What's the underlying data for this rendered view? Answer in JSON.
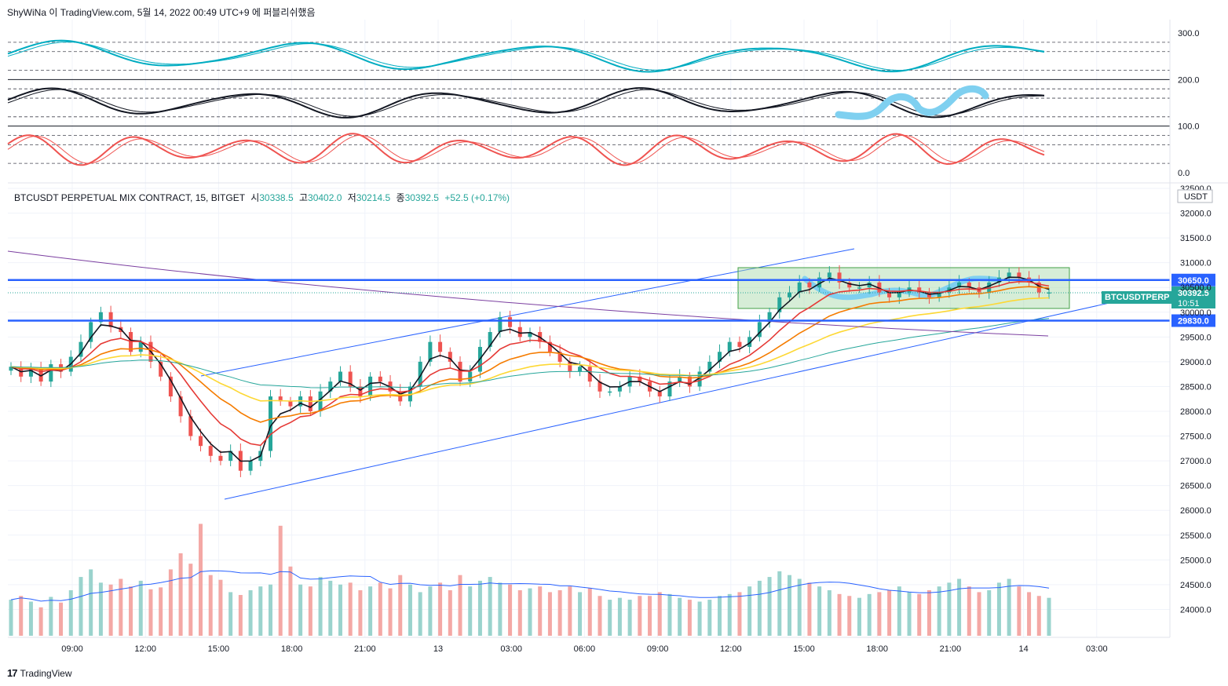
{
  "header": {
    "author_line": "ShyWiNa 이 TradingView.com, 5월 14, 2022 00:49 UTC+9 에 퍼블리쉬했음"
  },
  "legend": {
    "symbol": "BTCUSDT PERPETUAL MIX CONTRACT, 15, BITGET",
    "open_label": "시",
    "open": "30338.5",
    "high_label": "고",
    "high": "30402.0",
    "low_label": "저",
    "low": "30214.5",
    "close_label": "종",
    "close": "30392.5",
    "change": "+52.5 (+0.17%)"
  },
  "footer": {
    "brand": "TradingView",
    "logo_glyph": "17"
  },
  "colors": {
    "up": "#26a69a",
    "down": "#ef5350",
    "level": "#2962ff",
    "ema_fast": "#131722",
    "ema_mid": "#e53935",
    "ema_slow": "#f57c00",
    "ema_long": "#fdd835",
    "ema_200": "#26a69a",
    "ma_purple": "#7b3fa0",
    "zone": "#a5d6a7",
    "path": "#7fd0f0"
  },
  "chart_data": {
    "type": "candlestick",
    "currency": "USDT",
    "price_axis": {
      "min": 23500,
      "max": 32500,
      "ticks": [
        "32500.0",
        "32000.0",
        "31500.0",
        "31000.0",
        "30500.0",
        "30000.0",
        "29500.0",
        "29000.0",
        "28500.0",
        "28000.0",
        "27500.0",
        "27000.0",
        "26500.0",
        "26000.0",
        "25500.0",
        "25000.0",
        "24500.0",
        "24000.0"
      ]
    },
    "time_axis": [
      "09:00",
      "12:00",
      "15:00",
      "18:00",
      "21:00",
      "13",
      "03:00",
      "06:00",
      "09:00",
      "12:00",
      "15:00",
      "18:00",
      "21:00",
      "14",
      "03:00"
    ],
    "osc_axis": {
      "min": 0,
      "max": 300,
      "ticks": [
        "300.0",
        "200.0",
        "100.0",
        "0.0"
      ]
    },
    "levels": [
      {
        "price": 30650.0,
        "label": "30650.0"
      },
      {
        "price": 29830.0,
        "label": "29830.0"
      }
    ],
    "last": {
      "symbol": "BTCUSDTPERP",
      "price": "30392.5",
      "countdown": "10:51"
    },
    "closes": [
      28900,
      28700,
      28850,
      28600,
      28950,
      28800,
      29100,
      29400,
      29800,
      30000,
      29700,
      29600,
      29200,
      29400,
      29000,
      28700,
      28300,
      27900,
      27500,
      27300,
      27100,
      27000,
      27200,
      26800,
      27000,
      27200,
      28300,
      28200,
      28100,
      28300,
      28000,
      28400,
      28600,
      28800,
      28500,
      28300,
      28700,
      28600,
      28400,
      28200,
      28500,
      29000,
      29400,
      29200,
      29000,
      28600,
      28800,
      29300,
      29600,
      29900,
      29700,
      29500,
      29600,
      29400,
      29200,
      29000,
      28800,
      28900,
      28600,
      28400,
      28400,
      28500,
      28700,
      28600,
      28400,
      28300,
      28600,
      28700,
      28500,
      28800,
      29000,
      29200,
      29400,
      29300,
      29500,
      29800,
      30000,
      30300,
      30400,
      30600,
      30500,
      30700,
      30800,
      30600,
      30500,
      30500,
      30600,
      30400,
      30300,
      30400,
      30500,
      30400,
      30300,
      30400,
      30500,
      30600,
      30500,
      30400,
      30600,
      30700,
      30800,
      30700,
      30600,
      30400,
      30400
    ],
    "volumes": [
      380,
      420,
      360,
      300,
      410,
      350,
      480,
      620,
      700,
      560,
      540,
      600,
      520,
      580,
      490,
      510,
      700,
      870,
      760,
      1180,
      640,
      590,
      460,
      430,
      480,
      520,
      540,
      1160,
      730,
      540,
      520,
      620,
      580,
      540,
      560,
      480,
      520,
      560,
      500,
      640,
      540,
      460,
      520,
      560,
      480,
      640,
      520,
      580,
      620,
      560,
      540,
      480,
      500,
      520,
      460,
      480,
      520,
      460,
      500,
      420,
      380,
      400,
      380,
      420,
      420,
      460,
      440,
      400,
      380,
      360,
      380,
      420,
      440,
      460,
      520,
      580,
      620,
      680,
      640,
      600,
      560,
      520,
      480,
      440,
      420,
      400,
      440,
      460,
      480,
      520,
      460,
      440,
      480,
      520,
      560,
      600,
      520,
      460,
      480,
      560,
      600,
      520,
      460,
      420,
      400
    ],
    "stoch_series": [
      "stoch-1",
      "stoch-2",
      "stoch-3"
    ]
  }
}
